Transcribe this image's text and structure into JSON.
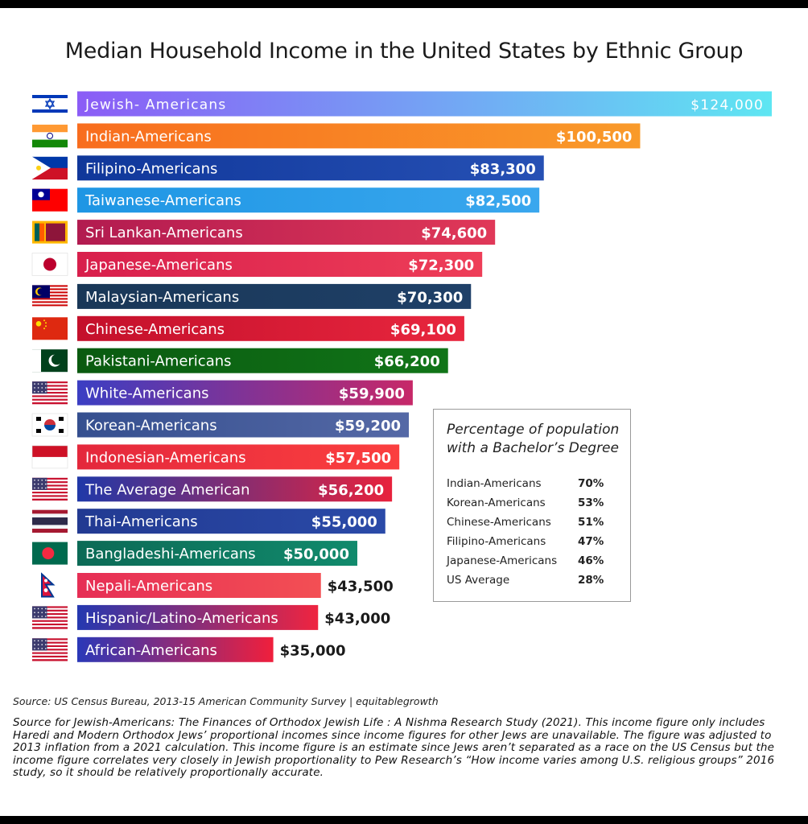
{
  "chart_data": {
    "type": "bar",
    "title": "Median Household Income in the United States  by Ethnic Group",
    "xlabel": "",
    "ylabel": "",
    "xlim": [
      0,
      124000
    ],
    "categories": [
      "Jewish- Americans",
      "Indian-Americans",
      "Filipino-Americans",
      "Taiwanese-Americans",
      "Sri Lankan-Americans",
      "Japanese-Americans",
      "Malaysian-Americans",
      "Chinese-Americans",
      "Pakistani-Americans",
      "White-Americans",
      "Korean-Americans",
      "Indonesian-Americans",
      "The Average American",
      "Thai-Americans",
      "Bangladeshi-Americans",
      "Nepali-Americans",
      "Hispanic/Latino-Americans",
      "African-Americans"
    ],
    "values": [
      124000,
      100500,
      83300,
      82500,
      74600,
      72300,
      70300,
      69100,
      66200,
      59900,
      59200,
      57500,
      56200,
      55000,
      50000,
      43500,
      43000,
      35000
    ],
    "value_labels": [
      "$124,000",
      "$100,500",
      "$83,300",
      "$82,500",
      "$74,600",
      "$72,300",
      "$70,300",
      "$69,100",
      "$66,200",
      "$59,900",
      "$59,200",
      "$57,500",
      "$56,200",
      "$55,000",
      "$50,000",
      "$43,500",
      "$43,000",
      "$35,000"
    ],
    "bar_colors": [
      [
        "#8b5cf6",
        "#5ee6f2"
      ],
      [
        "#f86d1e",
        "#f99a2a"
      ],
      [
        "#10379a",
        "#2650b4"
      ],
      [
        "#1e96e4",
        "#3aa7ee"
      ],
      [
        "#b21b50",
        "#e03858"
      ],
      [
        "#d81f4c",
        "#ee3e58"
      ],
      [
        "#193757",
        "#1f4068"
      ],
      [
        "#c4102b",
        "#e8263e"
      ],
      [
        "#0a5a10",
        "#117518"
      ],
      [
        "#3b3ec3",
        "#c72868"
      ],
      [
        "#354f8f",
        "#5569a6"
      ],
      [
        "#e4283c",
        "#fb3f3f"
      ],
      [
        "#2038a8",
        "#e8223c"
      ],
      [
        "#223a92",
        "#2a4aa8"
      ],
      [
        "#0c6a56",
        "#118a6c"
      ],
      [
        "#e62e55",
        "#f34f54"
      ],
      [
        "#2438b0",
        "#ef2440"
      ],
      [
        "#2a38b8",
        "#f01f3c"
      ]
    ],
    "flags": [
      "israel-flag",
      "india-flag",
      "philippines-flag",
      "taiwan-flag",
      "sri-lanka-flag",
      "japan-flag",
      "malaysia-flag",
      "china-flag",
      "pakistan-flag",
      "usa-flag",
      "south-korea-flag",
      "indonesia-flag",
      "usa-flag",
      "thailand-flag",
      "bangladesh-flag",
      "nepal-flag",
      "usa-flag",
      "usa-flag"
    ]
  },
  "legend": {
    "title_line1": "Percentage of population",
    "title_line2": "with a Bachelor’s Degree",
    "rows": [
      {
        "label": "Indian-Americans",
        "value": "70%"
      },
      {
        "label": "Korean-Americans",
        "value": "53%"
      },
      {
        "label": "Chinese-Americans",
        "value": "51%"
      },
      {
        "label": "Filipino-Americans",
        "value": "47%"
      },
      {
        "label": "Japanese-Americans",
        "value": "46%"
      },
      {
        "label": "US Average",
        "value": "28%"
      }
    ]
  },
  "sources": {
    "census": "Source: US Census Bureau, 2013-15 American Community Survey | equitablegrowth",
    "jewish": "Source for Jewish-Americans: The Finances of Orthodox Jewish Life : A Nishma Research Study (2021). This income figure only includes Haredi and Modern Orthodox Jews’ proportional incomes since income figures for other Jews are unavailable. The figure was adjusted to 2013 inflation from a 2021 calculation. This income figure is an estimate since Jews aren’t separated as a race on the US Census but the income figure correlates very closely in Jewish proportionality to Pew Research’s “How income varies among U.S. religious groups” 2016 study, so it should be relatively proportionally accurate."
  }
}
